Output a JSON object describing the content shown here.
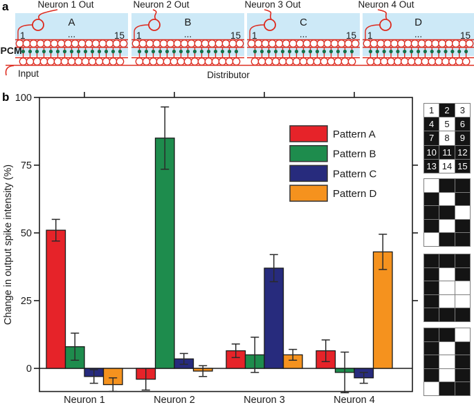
{
  "figure": {
    "panel_a_label": "a",
    "panel_b_label": "b"
  },
  "panel_a": {
    "pcm_label": "PCM",
    "input_label": "Input",
    "distributor_label": "Distributor",
    "num_synapses_per_block": 15,
    "blocks": [
      {
        "neuron_out_label": "Neuron 1 Out",
        "pattern_letter": "A",
        "first_index": "1",
        "ellipsis": "...",
        "last_index": "15"
      },
      {
        "neuron_out_label": "Neuron 2 Out",
        "pattern_letter": "B",
        "first_index": "1",
        "ellipsis": "...",
        "last_index": "15"
      },
      {
        "neuron_out_label": "Neuron 3 Out",
        "pattern_letter": "C",
        "first_index": "1",
        "ellipsis": "...",
        "last_index": "15"
      },
      {
        "neuron_out_label": "Neuron 4 Out",
        "pattern_letter": "D",
        "first_index": "1",
        "ellipsis": "...",
        "last_index": "15"
      }
    ],
    "colors": {
      "waveguide_red": "#dd2a1e",
      "box_blue": "#cde9f7",
      "pcm_green": "#0d9a5e",
      "dot_green": "#156f48"
    }
  },
  "chart_data": {
    "type": "bar",
    "title": "",
    "xlabel": "",
    "ylabel": "Change in output spike intensity (%)",
    "categories": [
      "Neuron 1",
      "Neuron 2",
      "Neuron 3",
      "Neuron 4"
    ],
    "yticks": [
      0,
      25,
      50,
      75,
      100
    ],
    "ylim": [
      -11,
      100
    ],
    "grid": false,
    "legend_position": "inside top, right of center",
    "series": [
      {
        "name": "Pattern A",
        "color": "#e62329",
        "values": [
          51,
          -4,
          6.5,
          6.5
        ],
        "errors": [
          4,
          4,
          2.5,
          4
        ]
      },
      {
        "name": "Pattern B",
        "color": "#1e8c4d",
        "values": [
          8,
          85,
          5,
          -1.5
        ],
        "errors": [
          5,
          11.5,
          6.5,
          7.5
        ]
      },
      {
        "name": "Pattern C",
        "color": "#272b7d",
        "values": [
          -3,
          3.5,
          37,
          -3.5
        ],
        "errors": [
          2.5,
          2,
          5,
          2
        ]
      },
      {
        "name": "Pattern D",
        "color": "#f5921e",
        "values": [
          -6,
          -1,
          5,
          43
        ],
        "errors": [
          2.5,
          2,
          2,
          6.5
        ]
      }
    ]
  },
  "pattern_grids": {
    "cols": 3,
    "rows": 5,
    "grids": [
      {
        "numbers": [
          "1",
          "2",
          "3",
          "4",
          "5",
          "6",
          "7",
          "8",
          "9",
          "10",
          "11",
          "12",
          "13",
          "14",
          "15"
        ],
        "filled": [
          0,
          1,
          0,
          1,
          0,
          1,
          1,
          0,
          1,
          1,
          1,
          1,
          1,
          0,
          1
        ]
      },
      {
        "filled": [
          0,
          1,
          1,
          1,
          0,
          1,
          1,
          1,
          0,
          1,
          0,
          1,
          0,
          1,
          1
        ]
      },
      {
        "filled": [
          1,
          1,
          1,
          1,
          0,
          1,
          1,
          0,
          0,
          1,
          0,
          0,
          1,
          1,
          1
        ]
      },
      {
        "filled": [
          1,
          1,
          0,
          1,
          0,
          1,
          1,
          0,
          1,
          1,
          0,
          1,
          0,
          1,
          1
        ]
      }
    ]
  }
}
